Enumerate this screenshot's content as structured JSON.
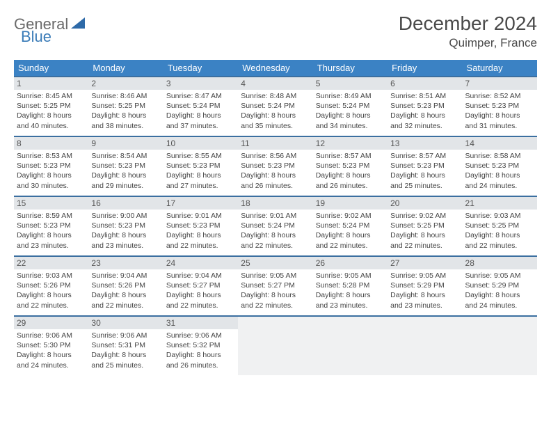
{
  "logo": {
    "text1": "General",
    "text2": "Blue"
  },
  "title": "December 2024",
  "location": "Quimper, France",
  "colors": {
    "header_bg": "#3b82c4",
    "header_text": "#ffffff",
    "daynum_bg": "#e2e5e8",
    "border": "#3b6fa0",
    "blank_bg": "#f0f1f2",
    "logo_gray": "#6b6b6b",
    "logo_blue": "#3b7cb8"
  },
  "weekdays": [
    "Sunday",
    "Monday",
    "Tuesday",
    "Wednesday",
    "Thursday",
    "Friday",
    "Saturday"
  ],
  "weeks": [
    [
      {
        "day": "1",
        "sunrise": "Sunrise: 8:45 AM",
        "sunset": "Sunset: 5:25 PM",
        "daylight1": "Daylight: 8 hours",
        "daylight2": "and 40 minutes."
      },
      {
        "day": "2",
        "sunrise": "Sunrise: 8:46 AM",
        "sunset": "Sunset: 5:25 PM",
        "daylight1": "Daylight: 8 hours",
        "daylight2": "and 38 minutes."
      },
      {
        "day": "3",
        "sunrise": "Sunrise: 8:47 AM",
        "sunset": "Sunset: 5:24 PM",
        "daylight1": "Daylight: 8 hours",
        "daylight2": "and 37 minutes."
      },
      {
        "day": "4",
        "sunrise": "Sunrise: 8:48 AM",
        "sunset": "Sunset: 5:24 PM",
        "daylight1": "Daylight: 8 hours",
        "daylight2": "and 35 minutes."
      },
      {
        "day": "5",
        "sunrise": "Sunrise: 8:49 AM",
        "sunset": "Sunset: 5:24 PM",
        "daylight1": "Daylight: 8 hours",
        "daylight2": "and 34 minutes."
      },
      {
        "day": "6",
        "sunrise": "Sunrise: 8:51 AM",
        "sunset": "Sunset: 5:23 PM",
        "daylight1": "Daylight: 8 hours",
        "daylight2": "and 32 minutes."
      },
      {
        "day": "7",
        "sunrise": "Sunrise: 8:52 AM",
        "sunset": "Sunset: 5:23 PM",
        "daylight1": "Daylight: 8 hours",
        "daylight2": "and 31 minutes."
      }
    ],
    [
      {
        "day": "8",
        "sunrise": "Sunrise: 8:53 AM",
        "sunset": "Sunset: 5:23 PM",
        "daylight1": "Daylight: 8 hours",
        "daylight2": "and 30 minutes."
      },
      {
        "day": "9",
        "sunrise": "Sunrise: 8:54 AM",
        "sunset": "Sunset: 5:23 PM",
        "daylight1": "Daylight: 8 hours",
        "daylight2": "and 29 minutes."
      },
      {
        "day": "10",
        "sunrise": "Sunrise: 8:55 AM",
        "sunset": "Sunset: 5:23 PM",
        "daylight1": "Daylight: 8 hours",
        "daylight2": "and 27 minutes."
      },
      {
        "day": "11",
        "sunrise": "Sunrise: 8:56 AM",
        "sunset": "Sunset: 5:23 PM",
        "daylight1": "Daylight: 8 hours",
        "daylight2": "and 26 minutes."
      },
      {
        "day": "12",
        "sunrise": "Sunrise: 8:57 AM",
        "sunset": "Sunset: 5:23 PM",
        "daylight1": "Daylight: 8 hours",
        "daylight2": "and 26 minutes."
      },
      {
        "day": "13",
        "sunrise": "Sunrise: 8:57 AM",
        "sunset": "Sunset: 5:23 PM",
        "daylight1": "Daylight: 8 hours",
        "daylight2": "and 25 minutes."
      },
      {
        "day": "14",
        "sunrise": "Sunrise: 8:58 AM",
        "sunset": "Sunset: 5:23 PM",
        "daylight1": "Daylight: 8 hours",
        "daylight2": "and 24 minutes."
      }
    ],
    [
      {
        "day": "15",
        "sunrise": "Sunrise: 8:59 AM",
        "sunset": "Sunset: 5:23 PM",
        "daylight1": "Daylight: 8 hours",
        "daylight2": "and 23 minutes."
      },
      {
        "day": "16",
        "sunrise": "Sunrise: 9:00 AM",
        "sunset": "Sunset: 5:23 PM",
        "daylight1": "Daylight: 8 hours",
        "daylight2": "and 23 minutes."
      },
      {
        "day": "17",
        "sunrise": "Sunrise: 9:01 AM",
        "sunset": "Sunset: 5:23 PM",
        "daylight1": "Daylight: 8 hours",
        "daylight2": "and 22 minutes."
      },
      {
        "day": "18",
        "sunrise": "Sunrise: 9:01 AM",
        "sunset": "Sunset: 5:24 PM",
        "daylight1": "Daylight: 8 hours",
        "daylight2": "and 22 minutes."
      },
      {
        "day": "19",
        "sunrise": "Sunrise: 9:02 AM",
        "sunset": "Sunset: 5:24 PM",
        "daylight1": "Daylight: 8 hours",
        "daylight2": "and 22 minutes."
      },
      {
        "day": "20",
        "sunrise": "Sunrise: 9:02 AM",
        "sunset": "Sunset: 5:25 PM",
        "daylight1": "Daylight: 8 hours",
        "daylight2": "and 22 minutes."
      },
      {
        "day": "21",
        "sunrise": "Sunrise: 9:03 AM",
        "sunset": "Sunset: 5:25 PM",
        "daylight1": "Daylight: 8 hours",
        "daylight2": "and 22 minutes."
      }
    ],
    [
      {
        "day": "22",
        "sunrise": "Sunrise: 9:03 AM",
        "sunset": "Sunset: 5:26 PM",
        "daylight1": "Daylight: 8 hours",
        "daylight2": "and 22 minutes."
      },
      {
        "day": "23",
        "sunrise": "Sunrise: 9:04 AM",
        "sunset": "Sunset: 5:26 PM",
        "daylight1": "Daylight: 8 hours",
        "daylight2": "and 22 minutes."
      },
      {
        "day": "24",
        "sunrise": "Sunrise: 9:04 AM",
        "sunset": "Sunset: 5:27 PM",
        "daylight1": "Daylight: 8 hours",
        "daylight2": "and 22 minutes."
      },
      {
        "day": "25",
        "sunrise": "Sunrise: 9:05 AM",
        "sunset": "Sunset: 5:27 PM",
        "daylight1": "Daylight: 8 hours",
        "daylight2": "and 22 minutes."
      },
      {
        "day": "26",
        "sunrise": "Sunrise: 9:05 AM",
        "sunset": "Sunset: 5:28 PM",
        "daylight1": "Daylight: 8 hours",
        "daylight2": "and 23 minutes."
      },
      {
        "day": "27",
        "sunrise": "Sunrise: 9:05 AM",
        "sunset": "Sunset: 5:29 PM",
        "daylight1": "Daylight: 8 hours",
        "daylight2": "and 23 minutes."
      },
      {
        "day": "28",
        "sunrise": "Sunrise: 9:05 AM",
        "sunset": "Sunset: 5:29 PM",
        "daylight1": "Daylight: 8 hours",
        "daylight2": "and 24 minutes."
      }
    ],
    [
      {
        "day": "29",
        "sunrise": "Sunrise: 9:06 AM",
        "sunset": "Sunset: 5:30 PM",
        "daylight1": "Daylight: 8 hours",
        "daylight2": "and 24 minutes."
      },
      {
        "day": "30",
        "sunrise": "Sunrise: 9:06 AM",
        "sunset": "Sunset: 5:31 PM",
        "daylight1": "Daylight: 8 hours",
        "daylight2": "and 25 minutes."
      },
      {
        "day": "31",
        "sunrise": "Sunrise: 9:06 AM",
        "sunset": "Sunset: 5:32 PM",
        "daylight1": "Daylight: 8 hours",
        "daylight2": "and 26 minutes."
      },
      null,
      null,
      null,
      null
    ]
  ]
}
